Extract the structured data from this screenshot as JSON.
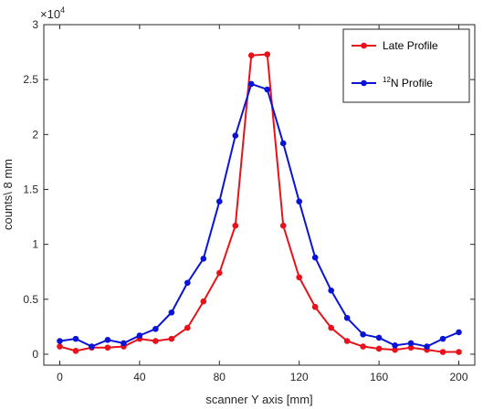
{
  "chart_data": {
    "type": "line",
    "xlabel": "scanner Y axis [mm]",
    "ylabel": "counts\\ 8 mm",
    "xlim": [
      -8,
      208
    ],
    "ylim": [
      -0.1,
      3
    ],
    "y_multiplier": "×10",
    "y_multiplier_exponent": "4",
    "xticks": [
      "0",
      "40",
      "80",
      "120",
      "160",
      "200"
    ],
    "yticks": [
      "0",
      "0.5",
      "1",
      "1.5",
      "2",
      "2.5",
      "3"
    ],
    "legend_position": "top-right",
    "grid": false,
    "series": [
      {
        "name": "Late Profile",
        "color": "#e8121b",
        "x": [
          0,
          8,
          16,
          24,
          32,
          40,
          48,
          56,
          64,
          72,
          80,
          88,
          96,
          104,
          112,
          120,
          128,
          136,
          144,
          152,
          160,
          168,
          176,
          184,
          192,
          200
        ],
        "y": [
          0.07,
          0.03,
          0.06,
          0.06,
          0.07,
          0.14,
          0.12,
          0.14,
          0.24,
          0.48,
          0.74,
          1.17,
          2.72,
          2.73,
          1.17,
          0.7,
          0.43,
          0.24,
          0.12,
          0.07,
          0.05,
          0.04,
          0.06,
          0.04,
          0.02,
          0.02
        ]
      },
      {
        "name_sup": "12",
        "name": "N Profile",
        "color": "#0a14d6",
        "x": [
          0,
          8,
          16,
          24,
          32,
          40,
          48,
          56,
          64,
          72,
          80,
          88,
          96,
          104,
          112,
          120,
          128,
          136,
          144,
          152,
          160,
          168,
          176,
          184,
          192,
          200
        ],
        "y": [
          0.12,
          0.14,
          0.07,
          0.13,
          0.1,
          0.17,
          0.23,
          0.38,
          0.65,
          0.87,
          1.39,
          1.99,
          2.46,
          2.41,
          1.92,
          1.39,
          0.88,
          0.58,
          0.33,
          0.18,
          0.15,
          0.08,
          0.1,
          0.07,
          0.14,
          0.2
        ]
      }
    ]
  }
}
